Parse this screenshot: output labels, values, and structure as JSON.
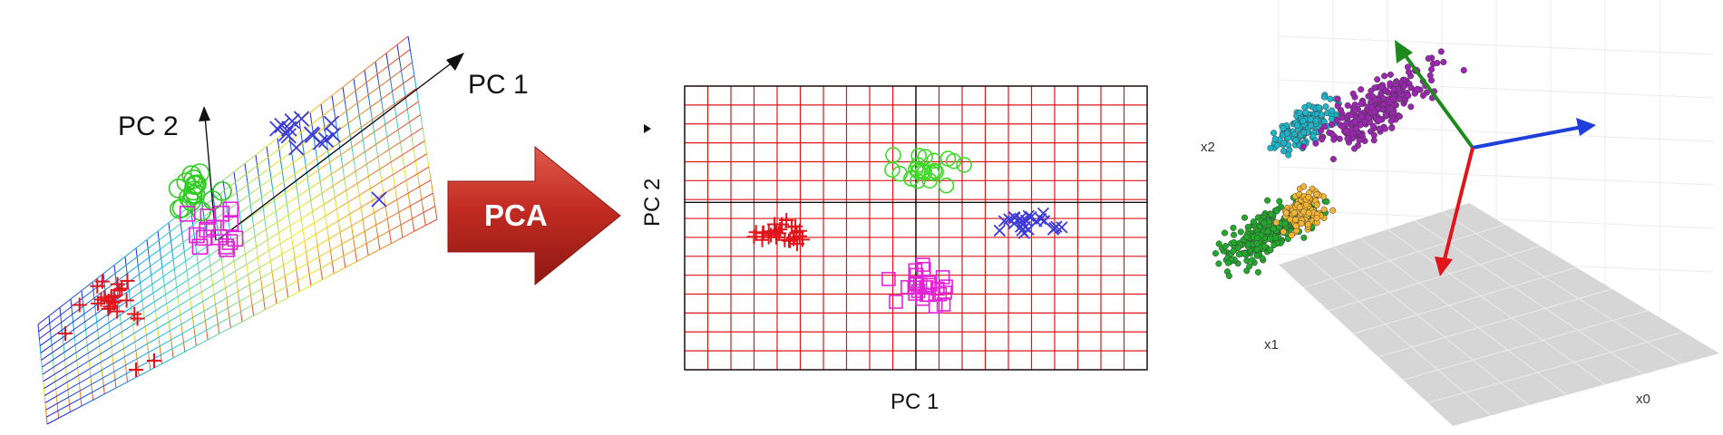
{
  "left_panel": {
    "pc1_label": "PC 1",
    "pc2_label": "PC 2",
    "plane_colors": [
      "#1a1ad6",
      "#19c9e3",
      "#f2e81e",
      "#e0412a"
    ],
    "group_colors": {
      "cross": "#e0141a",
      "circle": "#2ecc1f",
      "square": "#e224d6",
      "x": "#3b3bd8"
    }
  },
  "arrow": {
    "label": "PCA",
    "color": "#b82420"
  },
  "middle_panel": {
    "xlabel": "PC 1",
    "ylabel": "PC 2",
    "grid_color": "#e0151c",
    "group_colors": {
      "cross": "#e0141a",
      "circle": "#3fd929",
      "square": "#e224d6",
      "x": "#3b3bd8"
    }
  },
  "right_panel": {
    "x0_label": "x0",
    "x1_label": "x1",
    "x2_label": "x2",
    "cluster_colors": [
      "#22a82c",
      "#1fb3c7",
      "#9b27b0",
      "#f4b532"
    ],
    "vector_colors": {
      "green": "#1e8a1e",
      "blue": "#1f3fd9",
      "red": "#e0141a"
    }
  }
}
